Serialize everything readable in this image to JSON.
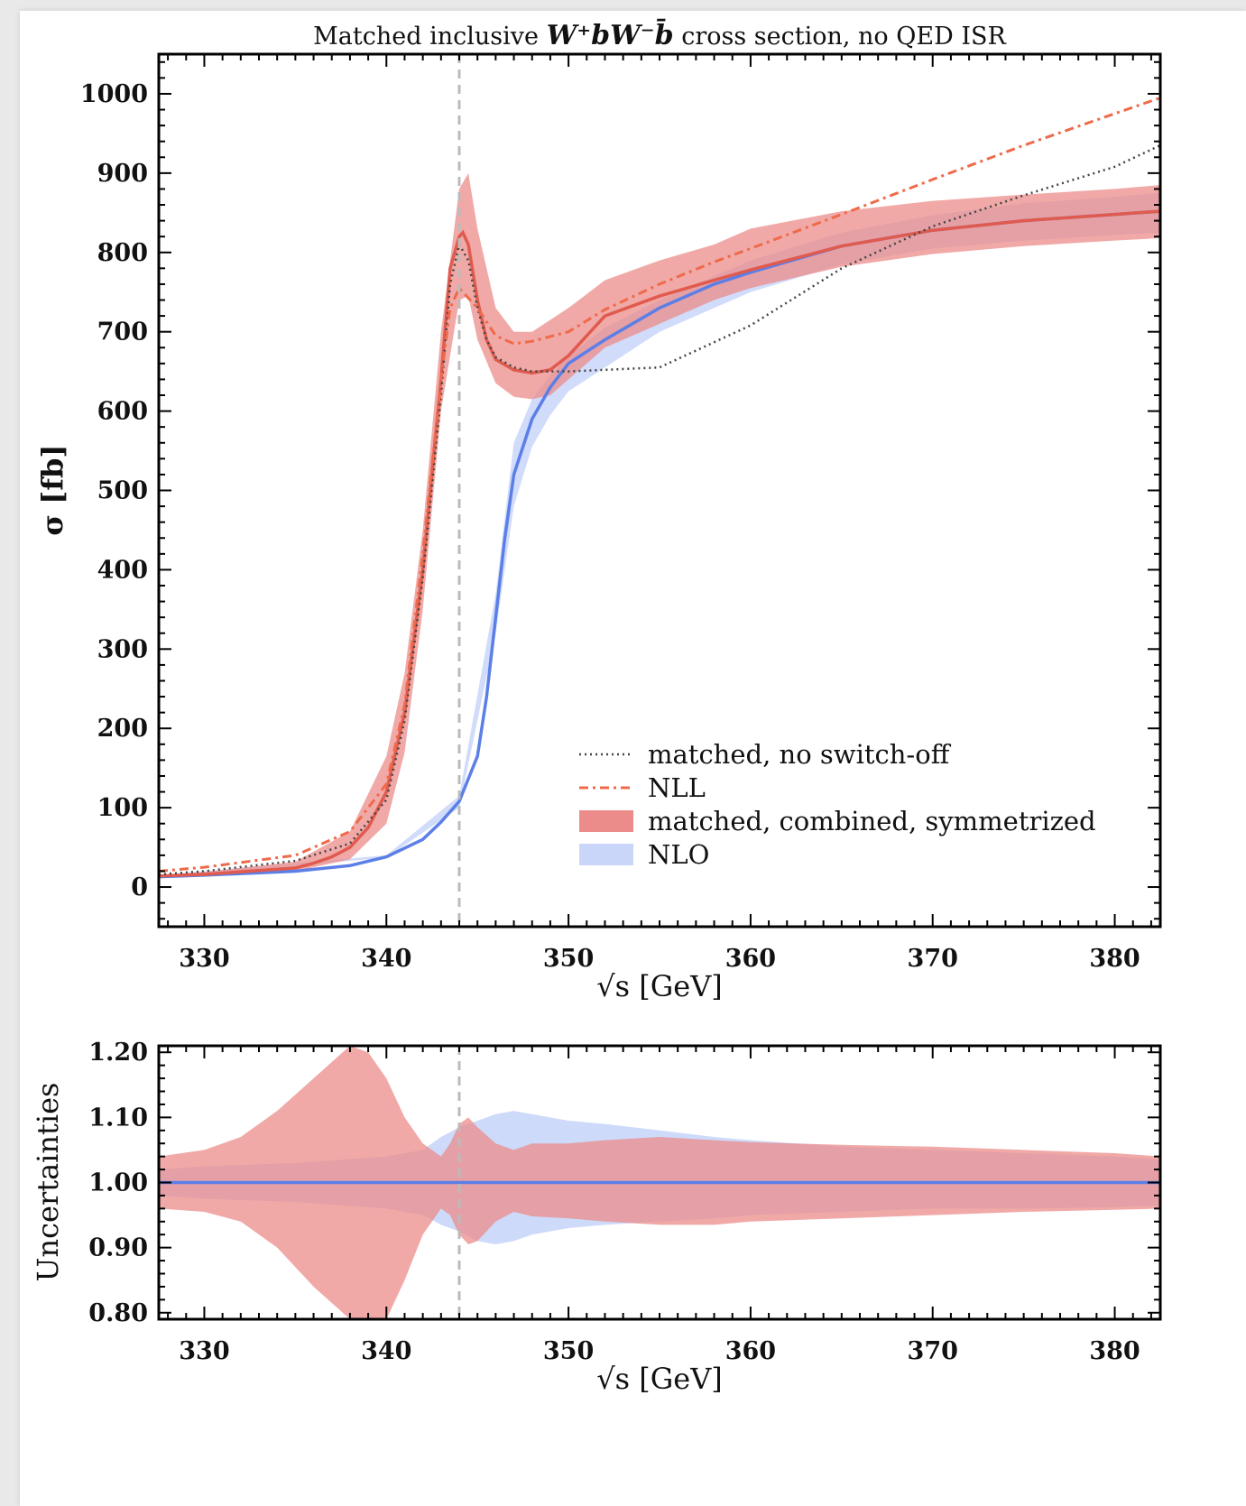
{
  "colors": {
    "matched": "#e05a4e",
    "matched_band": "#eb8c8a",
    "nlo": "#5b7fe6",
    "nlo_band": "#c9d6fa",
    "nll": "#ef6a4a",
    "noswitch": "#444444",
    "threshold": "#bbbbbb"
  },
  "chart_data": [
    {
      "type": "line",
      "title_prefix": "Matched inclusive ",
      "title_process": "W⁺bW⁻b̄",
      "title_suffix": " cross section, no QED ISR",
      "xlabel": "√s [GeV]",
      "ylabel": "σ [fb]",
      "xlim": [
        327.5,
        382.5
      ],
      "ylim": [
        -50,
        1050
      ],
      "xticks": [
        "330",
        "340",
        "350",
        "360",
        "370",
        "380"
      ],
      "yticks": [
        "0",
        "100",
        "200",
        "300",
        "400",
        "500",
        "600",
        "700",
        "800",
        "900",
        "1000"
      ],
      "threshold_x": 344,
      "legend_position": "lower-right",
      "legend": {
        "noswitch": "matched, no switch-off",
        "nll": "NLL",
        "matched_band": "matched, combined, symmetrized",
        "nlo_band": "NLO"
      },
      "series": {
        "nlo": {
          "x": [
            327.5,
            330,
            335,
            338,
            340,
            342,
            343,
            344,
            345,
            345.5,
            346,
            346.5,
            347,
            348,
            349,
            350,
            352,
            355,
            358,
            360,
            365,
            370,
            375,
            380,
            382.5
          ],
          "y": [
            13,
            15,
            20,
            27,
            38,
            60,
            82,
            108,
            165,
            240,
            340,
            440,
            520,
            590,
            630,
            660,
            690,
            730,
            760,
            775,
            808,
            828,
            840,
            848,
            852
          ]
        },
        "nlo_band": {
          "x": [
            327.5,
            340,
            344,
            346,
            347,
            348,
            349,
            350,
            352,
            355,
            360,
            365,
            370,
            375,
            380,
            382.5
          ],
          "lower": [
            12,
            37,
            100,
            320,
            480,
            555,
            595,
            625,
            655,
            700,
            750,
            785,
            805,
            815,
            822,
            825
          ],
          "upper": [
            15,
            40,
            115,
            370,
            560,
            615,
            645,
            670,
            705,
            740,
            790,
            825,
            847,
            862,
            870,
            875
          ]
        },
        "matched": {
          "x": [
            327.5,
            330,
            335,
            336,
            337,
            338,
            339,
            340,
            341,
            342,
            343,
            343.5,
            344,
            344.2,
            344.5,
            345,
            345.5,
            346,
            347,
            348,
            349,
            350,
            352,
            355,
            358,
            360,
            365,
            370,
            375,
            380,
            382.5
          ],
          "y": [
            14,
            16,
            24,
            30,
            38,
            50,
            75,
            120,
            220,
            400,
            640,
            780,
            820,
            825,
            810,
            740,
            690,
            665,
            652,
            648,
            652,
            670,
            720,
            745,
            765,
            778,
            808,
            828,
            840,
            848,
            852
          ]
        },
        "matched_band": {
          "x": [
            327.5,
            330,
            335,
            338,
            340,
            341,
            342,
            343,
            344,
            344.5,
            345,
            346,
            347,
            348,
            349,
            350,
            352,
            355,
            358,
            360,
            365,
            370,
            375,
            380,
            382.5
          ],
          "lower": [
            13,
            15,
            20,
            35,
            80,
            170,
            350,
            600,
            740,
            745,
            690,
            635,
            618,
            615,
            620,
            640,
            680,
            710,
            740,
            755,
            782,
            798,
            808,
            815,
            818
          ],
          "upper": [
            15,
            19,
            32,
            70,
            165,
            270,
            450,
            700,
            880,
            900,
            830,
            730,
            700,
            700,
            715,
            730,
            765,
            790,
            810,
            830,
            852,
            865,
            873,
            880,
            885
          ]
        },
        "noswitch": {
          "x": [
            327.5,
            330,
            335,
            338,
            340,
            341,
            342,
            343,
            343.5,
            344,
            344.5,
            345,
            345.5,
            346,
            347,
            348,
            350,
            355,
            360,
            365,
            370,
            375,
            380,
            382.5
          ],
          "y": [
            16,
            20,
            33,
            55,
            110,
            210,
            390,
            620,
            760,
            810,
            790,
            730,
            690,
            668,
            655,
            650,
            650,
            655,
            708,
            780,
            833,
            872,
            908,
            935
          ]
        },
        "nll": {
          "x": [
            327.5,
            330,
            335,
            338,
            340,
            341,
            342,
            343,
            343.5,
            344,
            345,
            346,
            347,
            348,
            350,
            352,
            355,
            358,
            360,
            365,
            370,
            375,
            380,
            382.5
          ],
          "y": [
            20,
            25,
            40,
            70,
            130,
            230,
            420,
            640,
            730,
            755,
            730,
            695,
            685,
            688,
            700,
            728,
            760,
            788,
            805,
            848,
            892,
            935,
            975,
            995
          ]
        }
      }
    },
    {
      "type": "area",
      "xlabel": "√s [GeV]",
      "ylabel": "Uncertainties",
      "xlim": [
        327.5,
        382.5
      ],
      "ylim": [
        0.79,
        1.21
      ],
      "xticks": [
        "330",
        "340",
        "350",
        "360",
        "370",
        "380"
      ],
      "yticks": [
        "0.80",
        "0.90",
        "1.00",
        "1.10",
        "1.20"
      ],
      "threshold_x": 344,
      "series": {
        "nlo_band": {
          "x": [
            327.5,
            330,
            335,
            340,
            342,
            343,
            344,
            345,
            346,
            347,
            348,
            350,
            352,
            355,
            358,
            360,
            365,
            370,
            375,
            380,
            382.5
          ],
          "upper": [
            1.02,
            1.025,
            1.03,
            1.04,
            1.05,
            1.07,
            1.085,
            1.095,
            1.105,
            1.11,
            1.105,
            1.095,
            1.09,
            1.08,
            1.07,
            1.065,
            1.055,
            1.05,
            1.045,
            1.04,
            1.035
          ],
          "lower": [
            0.98,
            0.975,
            0.97,
            0.96,
            0.95,
            0.935,
            0.925,
            0.91,
            0.905,
            0.91,
            0.92,
            0.93,
            0.935,
            0.94,
            0.945,
            0.95,
            0.955,
            0.96,
            0.96,
            0.962,
            0.965
          ]
        },
        "matched_band": {
          "x": [
            327.5,
            330,
            332,
            334,
            336,
            338,
            339,
            340,
            341,
            342,
            343,
            343.5,
            344,
            344.5,
            345,
            346,
            347,
            348,
            350,
            352,
            355,
            358,
            360,
            365,
            370,
            375,
            380,
            382.5
          ],
          "upper": [
            1.04,
            1.05,
            1.07,
            1.11,
            1.16,
            1.21,
            1.2,
            1.16,
            1.1,
            1.06,
            1.04,
            1.06,
            1.09,
            1.1,
            1.085,
            1.06,
            1.05,
            1.06,
            1.06,
            1.065,
            1.07,
            1.065,
            1.062,
            1.058,
            1.055,
            1.05,
            1.045,
            1.04
          ],
          "lower": [
            0.96,
            0.955,
            0.94,
            0.9,
            0.84,
            0.79,
            0.79,
            0.79,
            0.85,
            0.92,
            0.96,
            0.95,
            0.92,
            0.905,
            0.91,
            0.94,
            0.955,
            0.948,
            0.945,
            0.94,
            0.935,
            0.935,
            0.94,
            0.945,
            0.95,
            0.955,
            0.958,
            0.96
          ]
        },
        "nlo": {
          "x": [
            327.5,
            382.5
          ],
          "y": [
            1.0,
            1.0
          ]
        }
      }
    }
  ]
}
